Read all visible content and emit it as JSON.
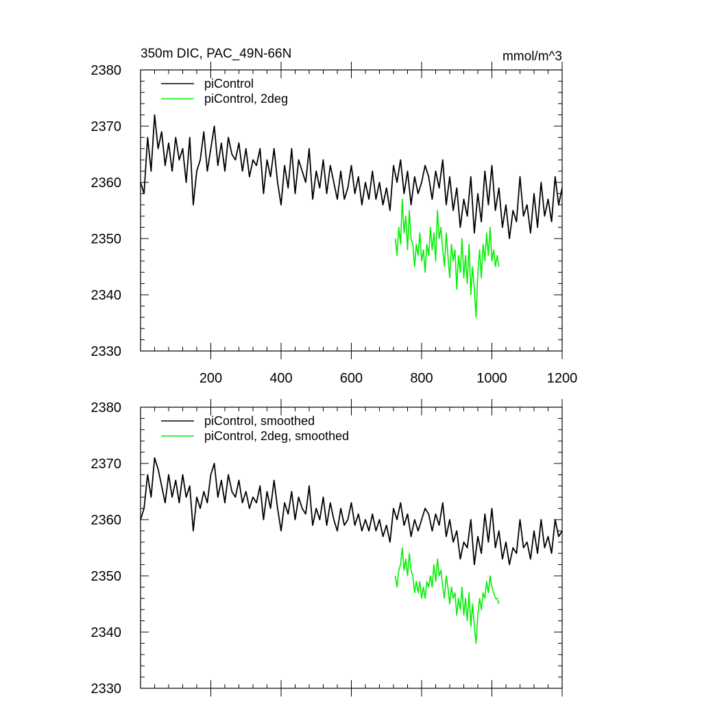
{
  "chart_data": [
    {
      "type": "line",
      "title": "350m DIC, PAC_49N-66N",
      "units": "mmol/m^3",
      "xlim": [
        0,
        1200
      ],
      "ylim": [
        2330,
        2380
      ],
      "xticks": [
        200,
        400,
        600,
        800,
        1000,
        1200
      ],
      "yticks": [
        2330,
        2340,
        2350,
        2360,
        2370,
        2380
      ],
      "legend_position": "top-left",
      "series": [
        {
          "name": "piControl",
          "color": "#000000",
          "x": [
            0,
            10,
            20,
            30,
            40,
            50,
            60,
            70,
            80,
            90,
            100,
            110,
            120,
            130,
            140,
            150,
            160,
            170,
            180,
            190,
            200,
            210,
            220,
            230,
            240,
            250,
            260,
            270,
            280,
            290,
            300,
            310,
            320,
            330,
            340,
            350,
            360,
            370,
            380,
            390,
            400,
            410,
            420,
            430,
            440,
            450,
            460,
            470,
            480,
            490,
            500,
            510,
            520,
            530,
            540,
            550,
            560,
            570,
            580,
            590,
            600,
            610,
            620,
            630,
            640,
            650,
            660,
            670,
            680,
            690,
            700,
            710,
            720,
            730,
            740,
            750,
            760,
            770,
            780,
            790,
            800,
            810,
            820,
            830,
            840,
            850,
            860,
            870,
            880,
            890,
            900,
            910,
            920,
            930,
            940,
            950,
            960,
            970,
            980,
            990,
            1000,
            1010,
            1020,
            1030,
            1040,
            1050,
            1060,
            1070,
            1080,
            1090,
            1100,
            1110,
            1120,
            1130,
            1140,
            1150,
            1160,
            1170,
            1180,
            1190,
            1200
          ],
          "values": [
            2360,
            2358,
            2368,
            2362,
            2372,
            2366,
            2369,
            2363,
            2367,
            2362,
            2368,
            2364,
            2366,
            2360,
            2368,
            2356,
            2362,
            2364,
            2369,
            2362,
            2366,
            2370,
            2363,
            2367,
            2362,
            2368,
            2365,
            2364,
            2367,
            2362,
            2366,
            2361,
            2364,
            2363,
            2366,
            2358,
            2364,
            2361,
            2366,
            2360,
            2356,
            2363,
            2359,
            2366,
            2358,
            2364,
            2362,
            2360,
            2366,
            2357,
            2362,
            2359,
            2364,
            2358,
            2363,
            2360,
            2357,
            2362,
            2357,
            2359,
            2363,
            2358,
            2361,
            2356,
            2360,
            2357,
            2362,
            2357,
            2360,
            2356,
            2359,
            2355,
            2363,
            2360,
            2364,
            2358,
            2362,
            2356,
            2361,
            2358,
            2360,
            2363,
            2361,
            2357,
            2362,
            2359,
            2364,
            2356,
            2361,
            2355,
            2359,
            2352,
            2357,
            2354,
            2361,
            2351,
            2358,
            2353,
            2362,
            2356,
            2363,
            2355,
            2359,
            2352,
            2356,
            2350,
            2355,
            2353,
            2361,
            2354,
            2356,
            2351,
            2358,
            2352,
            2360,
            2354,
            2357,
            2353,
            2361,
            2356,
            2359
          ],
          "width": 1.8
        },
        {
          "name": "piControl, 2deg",
          "color": "#00ee00",
          "x": [
            725,
            730,
            735,
            740,
            745,
            750,
            755,
            760,
            765,
            770,
            775,
            780,
            785,
            790,
            795,
            800,
            805,
            810,
            815,
            820,
            825,
            830,
            835,
            840,
            845,
            850,
            855,
            860,
            865,
            870,
            875,
            880,
            885,
            890,
            895,
            900,
            905,
            910,
            915,
            920,
            925,
            930,
            935,
            940,
            945,
            950,
            955,
            960,
            965,
            970,
            975,
            980,
            985,
            990,
            995,
            1000,
            1005,
            1010,
            1015,
            1020
          ],
          "values": [
            2350,
            2347,
            2352,
            2349,
            2357,
            2351,
            2354,
            2348,
            2355,
            2350,
            2349,
            2345,
            2349,
            2347,
            2351,
            2346,
            2348,
            2344,
            2349,
            2347,
            2352,
            2348,
            2351,
            2346,
            2355,
            2350,
            2352,
            2348,
            2345,
            2351,
            2347,
            2343,
            2349,
            2346,
            2348,
            2341,
            2347,
            2344,
            2350,
            2343,
            2347,
            2342,
            2349,
            2340,
            2345,
            2341,
            2336,
            2344,
            2348,
            2343,
            2349,
            2346,
            2351,
            2347,
            2352,
            2346,
            2348,
            2345,
            2347,
            2345
          ],
          "width": 1.6
        }
      ]
    },
    {
      "type": "line",
      "xlim": [
        0,
        1200
      ],
      "ylim": [
        2330,
        2380
      ],
      "xticks": [
        200,
        400,
        600,
        800,
        1000,
        1200
      ],
      "yticks": [
        2330,
        2340,
        2350,
        2360,
        2370,
        2380
      ],
      "legend_position": "top-left",
      "series": [
        {
          "name": "piControl, smoothed",
          "color": "#000000",
          "x": [
            0,
            10,
            20,
            30,
            40,
            50,
            60,
            70,
            80,
            90,
            100,
            110,
            120,
            130,
            140,
            150,
            160,
            170,
            180,
            190,
            200,
            210,
            220,
            230,
            240,
            250,
            260,
            270,
            280,
            290,
            300,
            310,
            320,
            330,
            340,
            350,
            360,
            370,
            380,
            390,
            400,
            410,
            420,
            430,
            440,
            450,
            460,
            470,
            480,
            490,
            500,
            510,
            520,
            530,
            540,
            550,
            560,
            570,
            580,
            590,
            600,
            610,
            620,
            630,
            640,
            650,
            660,
            670,
            680,
            690,
            700,
            710,
            720,
            730,
            740,
            750,
            760,
            770,
            780,
            790,
            800,
            810,
            820,
            830,
            840,
            850,
            860,
            870,
            880,
            890,
            900,
            910,
            920,
            930,
            940,
            950,
            960,
            970,
            980,
            990,
            1000,
            1010,
            1020,
            1030,
            1040,
            1050,
            1060,
            1070,
            1080,
            1090,
            1100,
            1110,
            1120,
            1130,
            1140,
            1150,
            1160,
            1170,
            1180,
            1190,
            1200
          ],
          "values": [
            2360,
            2362,
            2368,
            2364,
            2371,
            2369,
            2366,
            2363,
            2368,
            2364,
            2367,
            2363,
            2368,
            2364,
            2366,
            2358,
            2364,
            2362,
            2365,
            2363,
            2368,
            2370,
            2364,
            2367,
            2363,
            2368,
            2365,
            2364,
            2367,
            2363,
            2365,
            2362,
            2364,
            2363,
            2366,
            2360,
            2365,
            2362,
            2367,
            2362,
            2358,
            2363,
            2361,
            2365,
            2360,
            2364,
            2362,
            2361,
            2366,
            2359,
            2362,
            2360,
            2364,
            2359,
            2363,
            2360,
            2358,
            2362,
            2359,
            2360,
            2363,
            2359,
            2361,
            2358,
            2360,
            2358,
            2361,
            2358,
            2360,
            2357,
            2359,
            2356,
            2362,
            2360,
            2363,
            2359,
            2361,
            2357,
            2360,
            2358,
            2360,
            2362,
            2361,
            2358,
            2361,
            2359,
            2363,
            2357,
            2360,
            2356,
            2358,
            2353,
            2356,
            2355,
            2360,
            2352,
            2357,
            2354,
            2361,
            2356,
            2362,
            2355,
            2358,
            2353,
            2356,
            2352,
            2355,
            2354,
            2360,
            2355,
            2356,
            2353,
            2358,
            2354,
            2360,
            2355,
            2357,
            2354,
            2360,
            2357,
            2358
          ],
          "width": 1.8
        },
        {
          "name": "piControl, 2deg, smoothed",
          "color": "#00ee00",
          "x": [
            725,
            730,
            735,
            740,
            745,
            750,
            755,
            760,
            765,
            770,
            775,
            780,
            785,
            790,
            795,
            800,
            805,
            810,
            815,
            820,
            825,
            830,
            835,
            840,
            845,
            850,
            855,
            860,
            865,
            870,
            875,
            880,
            885,
            890,
            895,
            900,
            905,
            910,
            915,
            920,
            925,
            930,
            935,
            940,
            945,
            950,
            955,
            960,
            965,
            970,
            975,
            980,
            985,
            990,
            995,
            1000,
            1005,
            1010,
            1015,
            1020
          ],
          "values": [
            2350,
            2348,
            2351,
            2352,
            2355,
            2351,
            2353,
            2350,
            2354,
            2351,
            2350,
            2347,
            2349,
            2347,
            2349,
            2346,
            2348,
            2346,
            2349,
            2348,
            2350,
            2348,
            2352,
            2349,
            2353,
            2350,
            2351,
            2348,
            2346,
            2350,
            2348,
            2345,
            2348,
            2346,
            2347,
            2343,
            2346,
            2344,
            2348,
            2343,
            2346,
            2342,
            2347,
            2341,
            2345,
            2341,
            2338,
            2343,
            2346,
            2344,
            2347,
            2346,
            2349,
            2347,
            2350,
            2348,
            2347,
            2346,
            2346,
            2345
          ],
          "width": 1.6
        }
      ]
    }
  ]
}
